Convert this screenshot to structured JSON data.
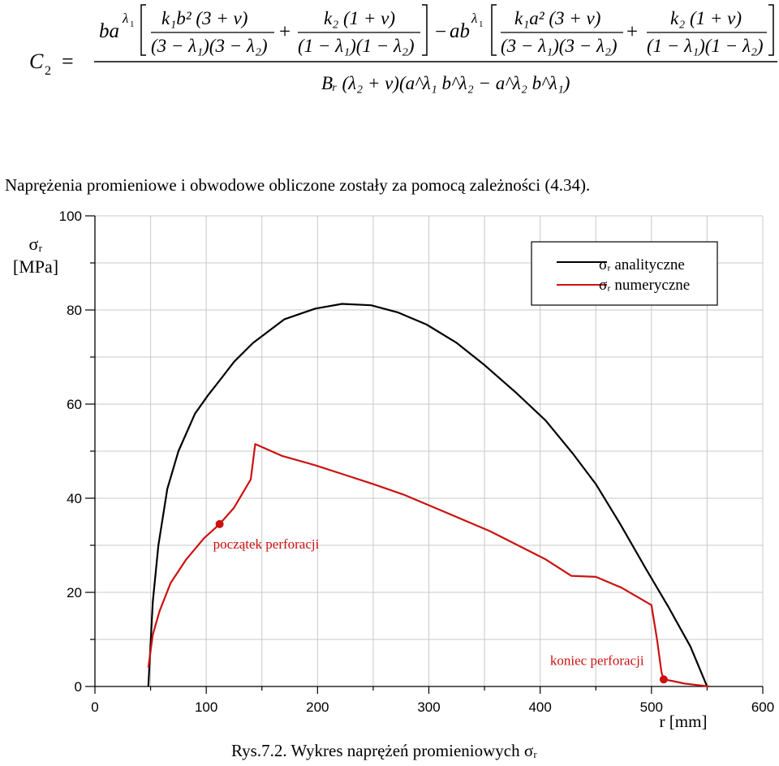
{
  "formula": {
    "lhs": "C",
    "lhs_sub": "2",
    "equals": "=",
    "num_term1_factor": "ba",
    "num_term1_exp": "λ",
    "num_term1_exp_sub": "1",
    "frac1_num": "k₁b² (3 + ν)",
    "frac1_den": "(3 − λ₁)(3 − λ₂)",
    "plus": "+",
    "frac2_num": "k₂ (1 + ν)",
    "frac2_den": "(1 − λ₁)(1 − λ₂)",
    "minus": "−",
    "num_term2_factor": "ab",
    "num_term2_exp": "λ",
    "num_term2_exp_sub": "1",
    "frac3_num": "k₁a² (3 + ν)",
    "frac3_den": "(3 − λ₁)(3 − λ₂)",
    "frac4_num": "k₂ (1 + ν)",
    "frac4_den": "(1 − λ₁)(1 − λ₂)",
    "denominator": "Bᵣ (λ₂ + ν)(a^λ₁ b^λ₂ − a^λ₂ b^λ₁)"
  },
  "intro_text": "Naprężenia promieniowe i obwodowe obliczone zostały za pomocą zależności (4.34).",
  "caption": "Rys.7.2. Wykres naprężeń promieniowych σᵣ",
  "colors": {
    "analytic": "#000000",
    "numeric": "#cc1111",
    "grid": "#c8c8c8"
  },
  "chart_data": {
    "type": "line",
    "ylabel": "σᵣ\n[MPa]",
    "ylabel_line1": "σᵣ",
    "ylabel_line2": "[MPa]",
    "xlabel": "r [mm]",
    "xlim": [
      0,
      600
    ],
    "ylim": [
      0,
      100
    ],
    "x_ticks": [
      "0",
      "100",
      "200",
      "300",
      "400",
      "500",
      "600"
    ],
    "y_ticks": [
      "0",
      "20",
      "40",
      "60",
      "80",
      "100"
    ],
    "grid": true,
    "legend_position": "top-right",
    "series": [
      {
        "name": "σᵣ analityczne",
        "color": "#000000",
        "points": [
          [
            48,
            0
          ],
          [
            52,
            18
          ],
          [
            57,
            30
          ],
          [
            65,
            42
          ],
          [
            75,
            50
          ],
          [
            90,
            58
          ],
          [
            102,
            62
          ],
          [
            112,
            65
          ],
          [
            125,
            69
          ],
          [
            142,
            73
          ],
          [
            170,
            78
          ],
          [
            198,
            80.3
          ],
          [
            222,
            81.3
          ],
          [
            248,
            81
          ],
          [
            272,
            79.5
          ],
          [
            298,
            76.9
          ],
          [
            325,
            73
          ],
          [
            350,
            68.3
          ],
          [
            378,
            62.5
          ],
          [
            405,
            56.5
          ],
          [
            430,
            49.3
          ],
          [
            450,
            43
          ],
          [
            472,
            34.5
          ],
          [
            495,
            25
          ],
          [
            515,
            17
          ],
          [
            535,
            8.5
          ],
          [
            550,
            0
          ]
        ]
      },
      {
        "name": "σᵣ numeryczne",
        "color": "#cc1111",
        "points": [
          [
            48,
            4
          ],
          [
            52,
            11
          ],
          [
            58,
            16
          ],
          [
            68,
            22
          ],
          [
            82,
            27
          ],
          [
            98,
            31.5
          ],
          [
            112,
            34.5
          ],
          [
            125,
            38
          ],
          [
            140,
            44
          ],
          [
            144,
            51.5
          ],
          [
            168,
            49
          ],
          [
            198,
            47
          ],
          [
            224,
            45
          ],
          [
            250,
            43
          ],
          [
            277,
            40.8
          ],
          [
            303,
            38.2
          ],
          [
            330,
            35.5
          ],
          [
            355,
            33
          ],
          [
            380,
            30
          ],
          [
            405,
            27
          ],
          [
            428,
            23.5
          ],
          [
            450,
            23.3
          ],
          [
            473,
            21
          ],
          [
            500,
            17.3
          ],
          [
            505,
            10
          ],
          [
            509,
            3
          ],
          [
            511,
            1.5
          ],
          [
            518,
            1.2
          ],
          [
            530,
            0.6
          ],
          [
            545,
            0.2
          ],
          [
            552,
            0
          ]
        ]
      }
    ],
    "annotations": [
      {
        "text": "początek perforacji",
        "x": 112,
        "y": 34.5,
        "color": "#cc1111"
      },
      {
        "text": "koniec perforacji",
        "x": 511,
        "y": 1.5,
        "color": "#cc1111"
      }
    ]
  }
}
